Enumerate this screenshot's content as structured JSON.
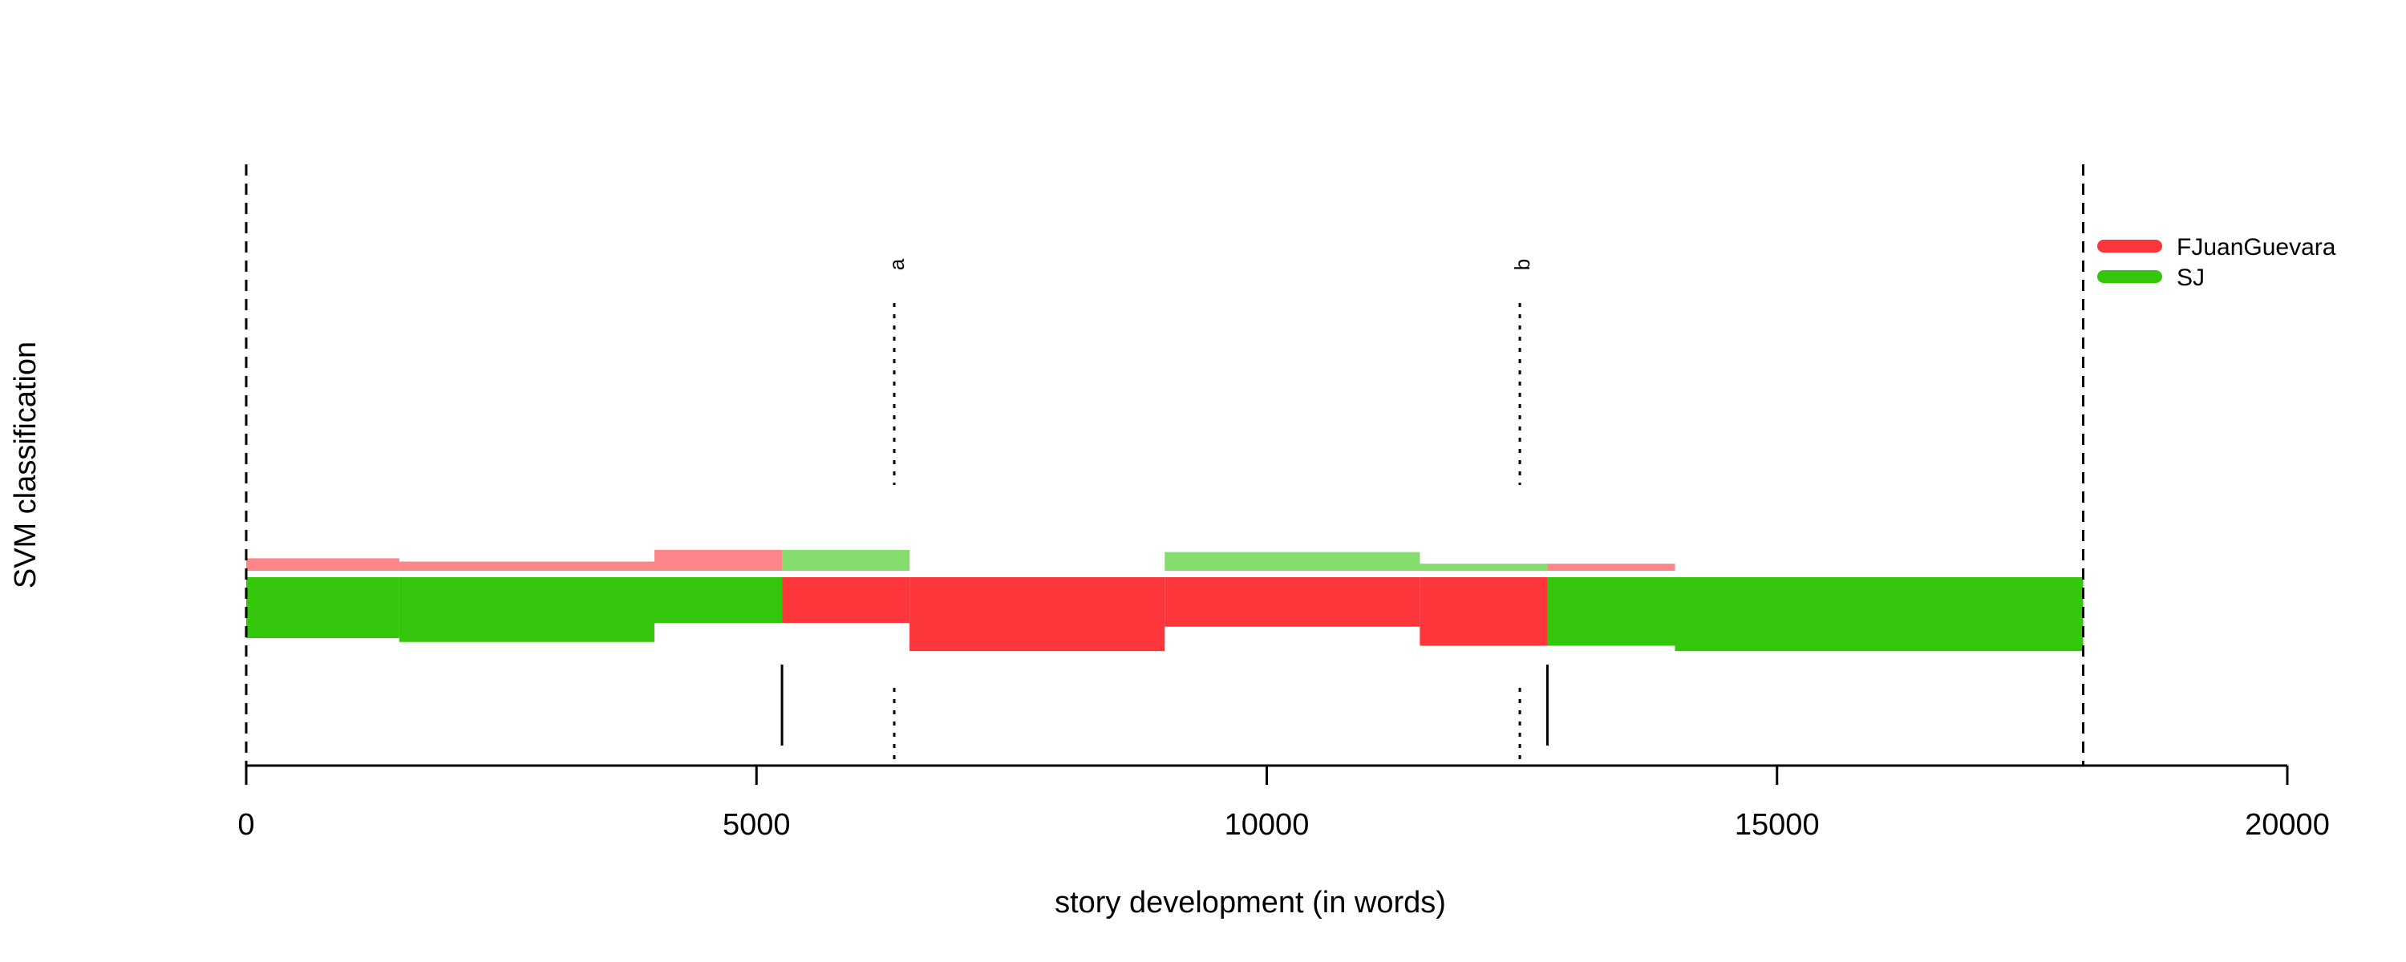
{
  "chart_data": {
    "type": "segments",
    "xlabel": "story development (in words)",
    "ylabel": "SVM classification",
    "xlim": [
      0,
      20000
    ],
    "xticks": [
      0,
      5000,
      10000,
      15000,
      20000
    ],
    "boundaries": [
      0,
      18000
    ],
    "colors": {
      "FJuanGuevara": "#fd363c",
      "FJuanGuevara_light": "#fc8589",
      "SJ": "#33c60a",
      "SJ_light": "#84dd6c"
    },
    "legend": {
      "position": "top-right",
      "entries": [
        {
          "name": "FJuanGuevara",
          "color": "#fd363c"
        },
        {
          "name": "SJ",
          "color": "#33c60a"
        }
      ]
    },
    "segments": [
      {
        "start": 0,
        "end": 1500,
        "class": "SJ",
        "strength": 0.8,
        "runner_up": "FJuanGuevara",
        "runner_up_strength": 0.3
      },
      {
        "start": 1500,
        "end": 4000,
        "class": "SJ",
        "strength": 0.85,
        "runner_up": "FJuanGuevara",
        "runner_up_strength": 0.22
      },
      {
        "start": 4000,
        "end": 5250,
        "class": "SJ",
        "strength": 0.6,
        "runner_up": "FJuanGuevara",
        "runner_up_strength": 0.5
      },
      {
        "start": 5250,
        "end": 6500,
        "class": "FJuanGuevara",
        "strength": 0.6,
        "runner_up": "SJ",
        "runner_up_strength": 0.5
      },
      {
        "start": 6500,
        "end": 9000,
        "class": "FJuanGuevara",
        "strength": 0.97,
        "runner_up": null,
        "runner_up_strength": 0
      },
      {
        "start": 9000,
        "end": 11500,
        "class": "FJuanGuevara",
        "strength": 0.65,
        "runner_up": "SJ",
        "runner_up_strength": 0.45
      },
      {
        "start": 11500,
        "end": 12750,
        "class": "FJuanGuevara",
        "strength": 0.9,
        "runner_up": "SJ",
        "runner_up_strength": 0.17
      },
      {
        "start": 12750,
        "end": 14000,
        "class": "SJ",
        "strength": 0.9,
        "runner_up": "FJuanGuevara",
        "runner_up_strength": 0.17
      },
      {
        "start": 14000,
        "end": 18000,
        "class": "SJ",
        "strength": 0.97,
        "runner_up": null,
        "runner_up_strength": 0
      }
    ],
    "change_points": [
      5250,
      12750
    ],
    "annotations": [
      {
        "label": "a",
        "x": 6350
      },
      {
        "label": "b",
        "x": 12480
      }
    ]
  }
}
